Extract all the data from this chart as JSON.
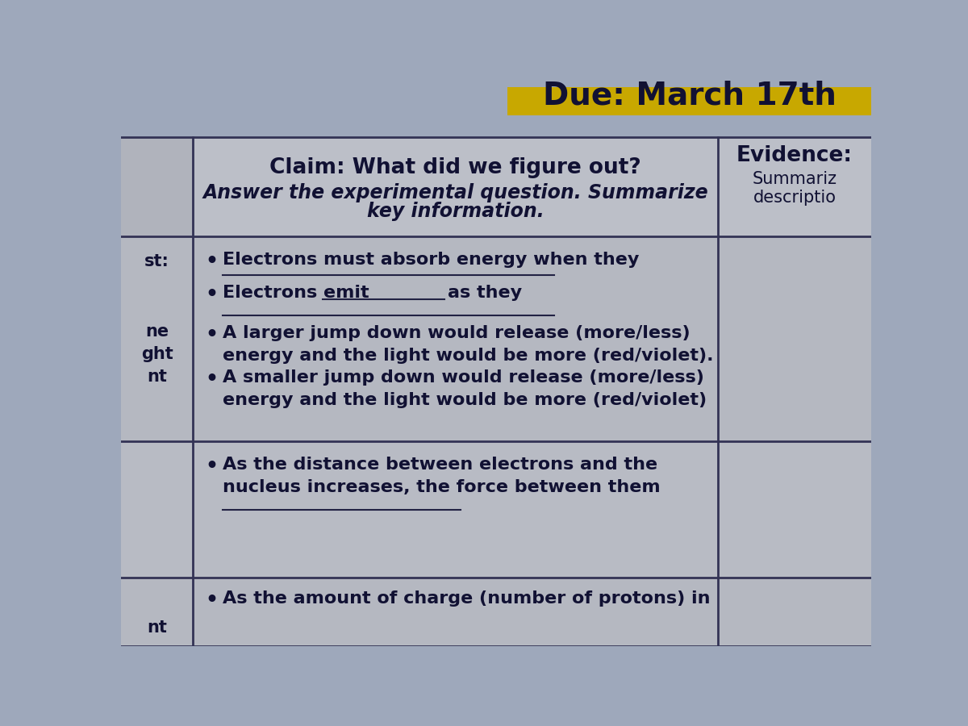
{
  "title": "Due: March 17th",
  "title_bg": "#c8a800",
  "title_color": "#111133",
  "bg_color": "#9ea8bb",
  "table_bg_header": "#bbbfc8",
  "table_bg_row1": "#b8bcc5",
  "table_bg_row2": "#b5b9c2",
  "table_bg_row3": "#b8bcc5",
  "text_color": "#111133",
  "line_color": "#333355",
  "header_claim": "Claim: What did we figure out?",
  "header_claim_sub1": "Answer the experimental question. Summarize",
  "header_claim_sub2": "key information.",
  "header_evidence": "Evidence:",
  "header_evidence_sub1": "Summariz",
  "header_evidence_sub2": "descriptio",
  "left_col_labels": [
    "st:",
    "ne\nght\nnt",
    "nt"
  ],
  "font_size_title": 28,
  "font_size_header_bold": 19,
  "font_size_header_italic": 17,
  "font_size_body": 16,
  "font_size_left": 15
}
